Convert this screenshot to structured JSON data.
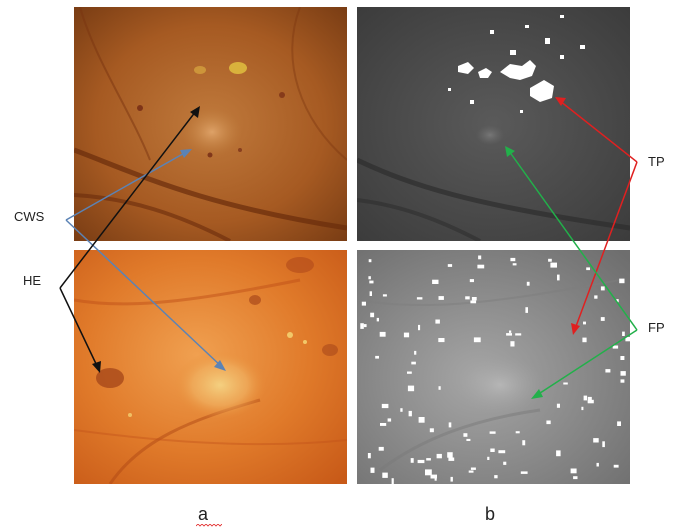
{
  "labels": {
    "cws": "CWS",
    "he": "HE",
    "tp": "TP",
    "fp": "FP"
  },
  "panels": {
    "a": "a",
    "b": "b"
  },
  "colors": {
    "cws_arrow": "#5b83b5",
    "he_arrow": "#111111",
    "tp_arrow": "#e02020",
    "fp_arrow": "#22b04a",
    "spellcheck_underline": "#e02020"
  }
}
